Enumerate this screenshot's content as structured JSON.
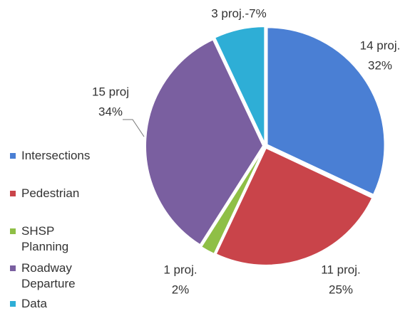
{
  "chart_data": {
    "type": "pie",
    "categories": [
      "Intersections",
      "Pedestrian",
      "SHSP Planning",
      "Roadway Departure",
      "Data"
    ],
    "values": [
      32,
      25,
      2,
      34,
      7
    ],
    "value_labels": [
      [
        "14 proj.",
        "32%"
      ],
      [
        "11 proj.",
        "25%"
      ],
      [
        "1 proj.",
        "2%"
      ],
      [
        "15 proj",
        "34%"
      ],
      [
        "3 proj.-7%"
      ]
    ],
    "colors": [
      "#4a7fd4",
      "#c9444a",
      "#8fbf46",
      "#7a5fa0",
      "#2eaed6"
    ],
    "legend": "left"
  }
}
